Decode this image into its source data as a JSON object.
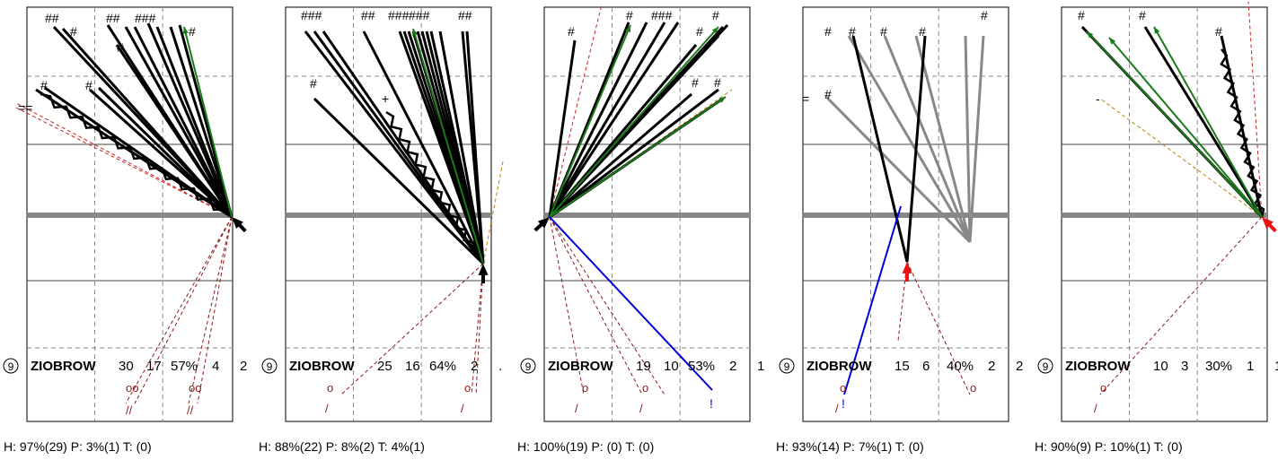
{
  "chart_data": [
    {
      "type": "shot-chart",
      "player": "ZIOBROW",
      "number": "9",
      "stats": [
        "30",
        "17",
        "57%",
        "4",
        "2"
      ],
      "footer": "H: 97%(29)  P: 3%(1)  T: (0)"
    },
    {
      "type": "shot-chart",
      "player": "ZIOBROW",
      "number": "9",
      "stats": [
        "25",
        "16",
        "64%",
        "2",
        "."
      ],
      "footer": "H: 88%(22)  P: 8%(2)  T: 4%(1)"
    },
    {
      "type": "shot-chart",
      "player": "ZIOBROW",
      "number": "9",
      "stats": [
        "19",
        "10",
        "53%",
        "2",
        "1"
      ],
      "footer": "H: 100%(19)  P: (0)  T: (0)"
    },
    {
      "type": "shot-chart",
      "player": "ZIOBROW",
      "number": "9",
      "stats": [
        "15",
        "6",
        "40%",
        "2",
        "2"
      ],
      "footer": "H: 93%(14)  P: 7%(1)  T: (0)"
    },
    {
      "type": "shot-chart",
      "player": "ZIOBROW",
      "number": "9",
      "stats": [
        "10",
        "3",
        "30%",
        "1",
        "1"
      ],
      "footer": "H: 90%(9)  P: 10%(1)  T: (0)"
    }
  ],
  "colors": {
    "goal_line": "#000000",
    "save": "#000000",
    "plus": "#1a7a1a",
    "minus": "#b8860b",
    "miss": "#8b1a1a",
    "highlight": "#0000dd",
    "arrow_red": "#ee1111",
    "grey": "#888888"
  }
}
